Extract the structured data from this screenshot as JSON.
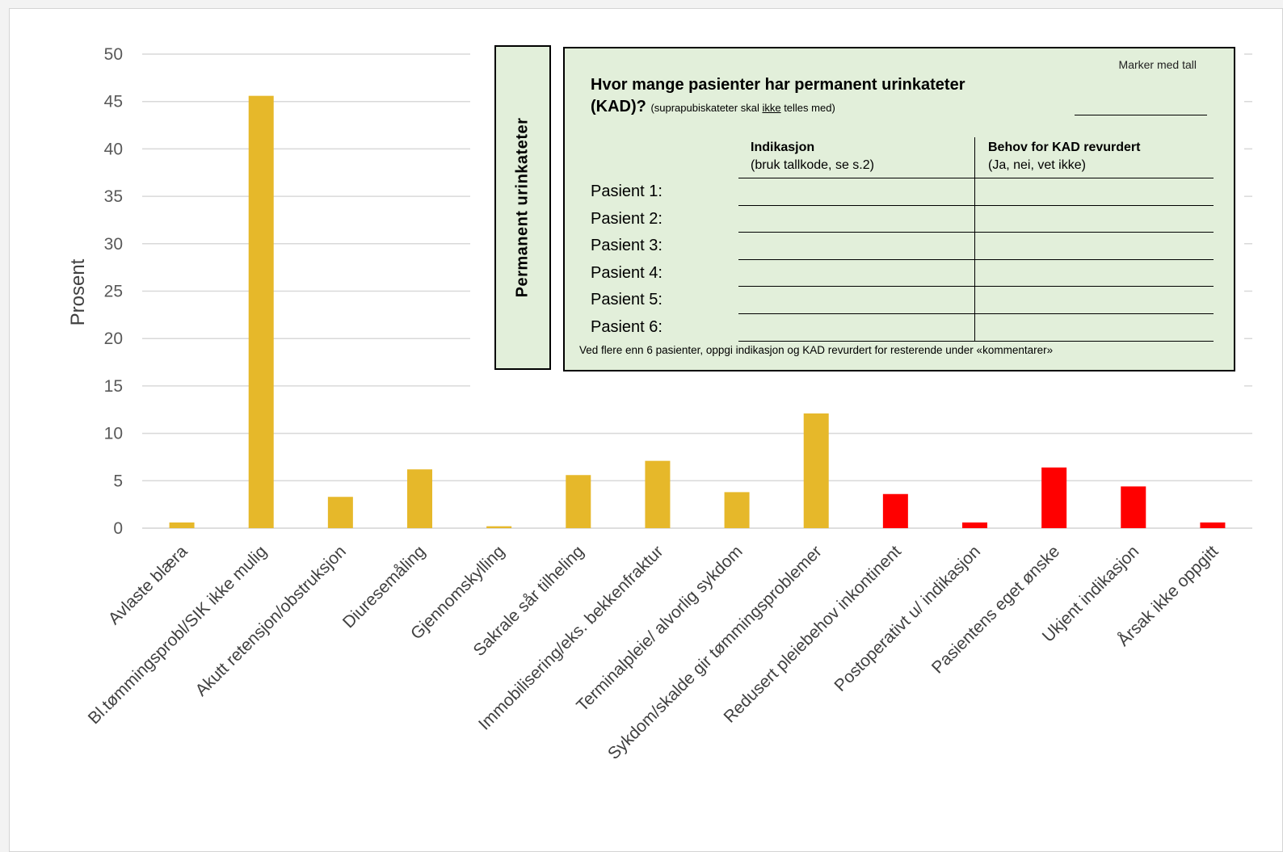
{
  "chart_data": {
    "type": "bar",
    "ylabel": "Prosent",
    "xlabel": "",
    "ylim": [
      0,
      50
    ],
    "yticks": [
      0,
      5,
      10,
      15,
      20,
      25,
      30,
      35,
      40,
      45,
      50
    ],
    "grid": true,
    "categories": [
      "Avlaste blæra",
      "Bl.tømmingsprobl/SIK ikke mulig",
      "Akutt retensjon/obstruksjon",
      "Diuresemåling",
      "Gjennomskylling",
      "Sakrale sår tilheling",
      "Immobilisering/eks. bekkenfraktur",
      "Terminalpleie/ alvorlig sykdom",
      "Sykdom/skalde gir tømmingsproblemer",
      "Redusert pleiebehov inkontinent",
      "Postoperativt u/ indikasjon",
      "Pasientens eget ønske",
      "Ukjent indikasjon",
      "Årsak ikke oppgitt"
    ],
    "values": [
      0.6,
      45.6,
      3.3,
      6.2,
      0.2,
      5.6,
      7.1,
      3.8,
      12.1,
      3.6,
      0.6,
      6.4,
      4.4,
      0.6
    ],
    "colors": [
      "#e6b82a",
      "#e6b82a",
      "#e6b82a",
      "#e6b82a",
      "#e6b82a",
      "#e6b82a",
      "#e6b82a",
      "#e6b82a",
      "#e6b82a",
      "#ff0000",
      "#ff0000",
      "#ff0000",
      "#ff0000",
      "#ff0000"
    ]
  },
  "colors": {
    "bar_yellow": "#e6b82a",
    "bar_red": "#ff0000",
    "form_background": "#e2efda"
  },
  "form": {
    "side_title": "Permanent urinkateter",
    "marker": "Marker med tall",
    "question": "Hvor mange pasienter har permanent urinkateter",
    "question_kad": "(KAD)?",
    "note_prefix": "(suprapubiskateter skal ",
    "note_emph": "ikke",
    "note_suffix": " telles med)",
    "col1_title": "Indikasjon",
    "col1_sub": "(bruk tallkode, se s.2)",
    "col2_title": "Behov for KAD revurdert",
    "col2_sub": "(Ja, nei, vet ikke)",
    "patients": [
      "Pasient 1:",
      "Pasient 2:",
      "Pasient 3:",
      "Pasient 4:",
      "Pasient 5:",
      "Pasient 6:"
    ],
    "footnote": "Ved flere enn 6 pasienter, oppgi indikasjon og KAD revurdert for resterende under «kommentarer»"
  }
}
